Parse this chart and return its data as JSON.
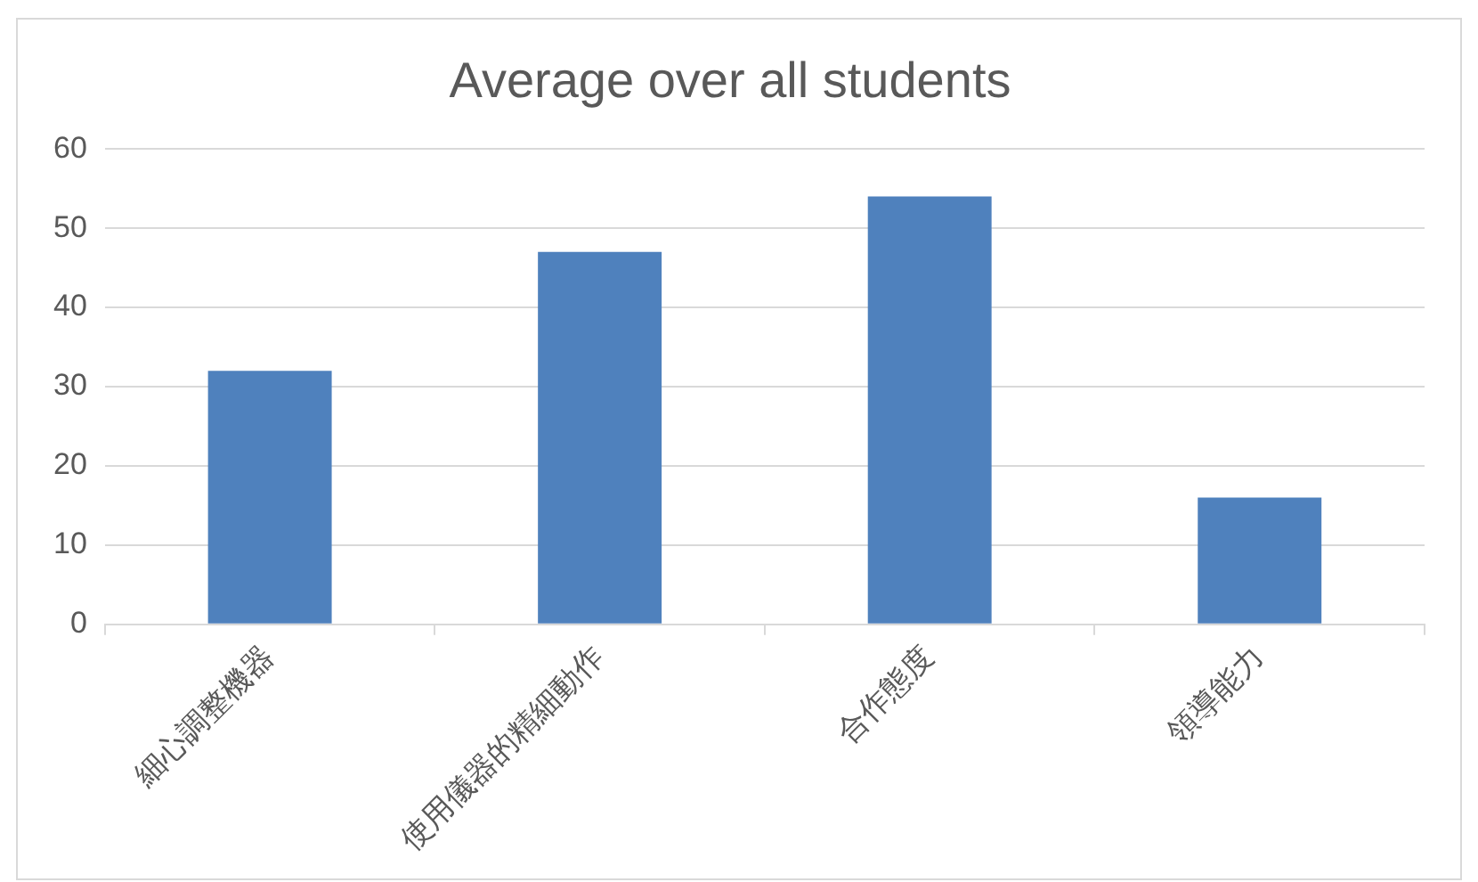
{
  "chart_data": {
    "type": "bar",
    "title": "Average over all students",
    "categories": [
      "細心調整機器",
      "使用儀器的精細動作",
      "合作態度",
      "領導能力"
    ],
    "values": [
      32,
      47,
      54,
      16
    ],
    "color": "#4f81bd",
    "ylim": [
      0,
      60
    ],
    "yticks": [
      0,
      10,
      20,
      30,
      40,
      50,
      60
    ],
    "grid": "y"
  }
}
